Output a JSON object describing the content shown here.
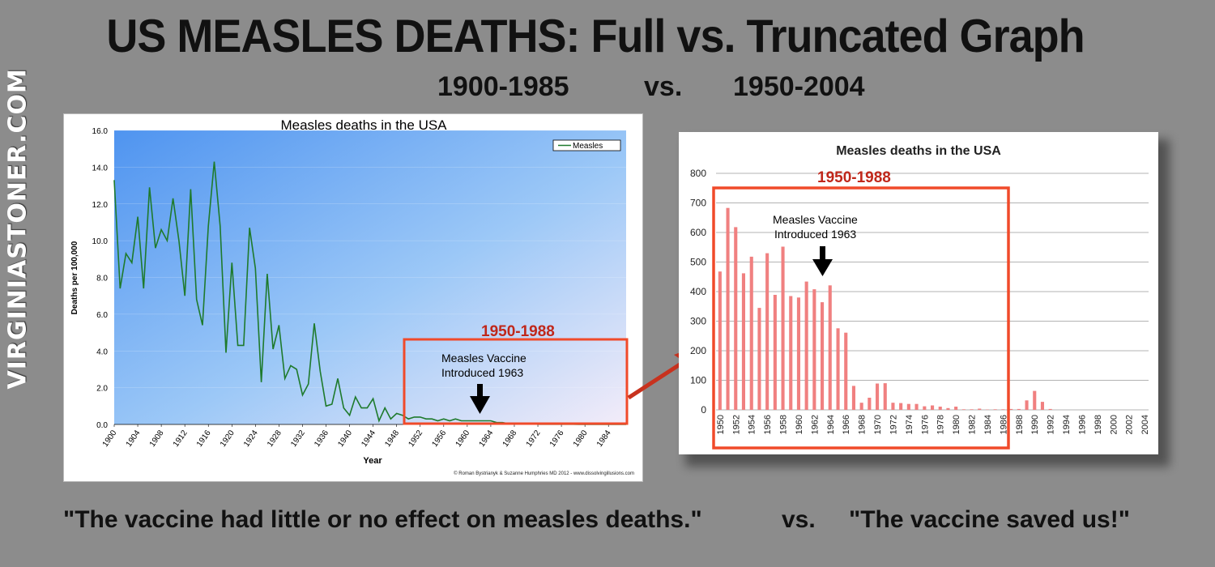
{
  "headline": "US MEASLES DEATHS: Full vs. Truncated Graph",
  "subtitle": {
    "left": "1900-1985",
    "mid": "vs.",
    "right": "1950-2004"
  },
  "side_brand": "VIRGINIASTONER.COM",
  "captions": {
    "left": "\"The vaccine had little or no effect on measles deaths.\"",
    "mid": "vs.",
    "right": "\"The vaccine saved us!\""
  },
  "colors": {
    "line": "#1e7a2c",
    "bar": "#f08080",
    "highlight": "#f04a2a",
    "arrow": "#c8321e"
  },
  "chart_data": [
    {
      "type": "line",
      "title": "Measles deaths in the USA",
      "xlabel": "Year",
      "ylabel": "Deaths per 100,000",
      "ylim": [
        0,
        16
      ],
      "yticks": [
        "0.0",
        "2.0",
        "4.0",
        "6.0",
        "8.0",
        "10.0",
        "12.0",
        "14.0",
        "16.0"
      ],
      "xlim": [
        1900,
        1987
      ],
      "xticks": [
        "1900",
        "1904",
        "1908",
        "1912",
        "1916",
        "1920",
        "1924",
        "1928",
        "1932",
        "1936",
        "1940",
        "1944",
        "1948",
        "1952",
        "1956",
        "1960",
        "1964",
        "1968",
        "1972",
        "1976",
        "1980",
        "1984"
      ],
      "legend": "Measles",
      "legend_position": "top-right",
      "credit": "© Roman Bystrianyk & Suzanne Humphries MD 2012 - www.dissolvingillusions.com",
      "highlight_label": "1950-1988",
      "annotation": [
        "Measles Vaccine",
        "Introduced 1963"
      ],
      "series": [
        {
          "name": "Measles",
          "x": [
            1900,
            1901,
            1902,
            1903,
            1904,
            1905,
            1906,
            1907,
            1908,
            1909,
            1910,
            1911,
            1912,
            1913,
            1914,
            1915,
            1916,
            1917,
            1918,
            1919,
            1920,
            1921,
            1922,
            1923,
            1924,
            1925,
            1926,
            1927,
            1928,
            1929,
            1930,
            1931,
            1932,
            1933,
            1934,
            1935,
            1936,
            1937,
            1938,
            1939,
            1940,
            1941,
            1942,
            1943,
            1944,
            1945,
            1946,
            1947,
            1948,
            1949,
            1950,
            1951,
            1952,
            1953,
            1954,
            1955,
            1956,
            1957,
            1958,
            1959,
            1960,
            1961,
            1962,
            1963,
            1964,
            1965,
            1966,
            1967,
            1968,
            1969,
            1970,
            1971,
            1972,
            1973,
            1974,
            1975,
            1976,
            1977,
            1978,
            1979,
            1980,
            1981,
            1982,
            1983,
            1984,
            1985,
            1986,
            1987
          ],
          "values": [
            13.3,
            7.4,
            9.3,
            8.8,
            11.3,
            7.4,
            12.9,
            9.6,
            10.6,
            10.0,
            12.3,
            10.0,
            7.0,
            12.8,
            6.8,
            5.4,
            10.8,
            14.3,
            10.8,
            3.9,
            8.8,
            4.3,
            4.3,
            10.7,
            8.5,
            2.3,
            8.2,
            4.1,
            5.4,
            2.5,
            3.2,
            3.0,
            1.6,
            2.2,
            5.5,
            2.9,
            1.0,
            1.1,
            2.5,
            0.9,
            0.5,
            1.5,
            0.9,
            0.9,
            1.4,
            0.2,
            0.9,
            0.3,
            0.6,
            0.5,
            0.3,
            0.4,
            0.4,
            0.3,
            0.3,
            0.2,
            0.3,
            0.2,
            0.3,
            0.2,
            0.2,
            0.2,
            0.2,
            0.2,
            0.2,
            0.1,
            0.1,
            0.05,
            0.02,
            0.02,
            0.04,
            0.04,
            0.01,
            0.01,
            0.01,
            0.01,
            0.01,
            0.01,
            0.01,
            0.0,
            0.0,
            0.0,
            0.0,
            0.0,
            0.0,
            0.0,
            0.0,
            0.0
          ]
        }
      ]
    },
    {
      "type": "bar",
      "title": "Measles deaths in the USA",
      "ylim": [
        0,
        800
      ],
      "yticks": [
        "0",
        "100",
        "200",
        "300",
        "400",
        "500",
        "600",
        "700",
        "800"
      ],
      "xticks": [
        "1950",
        "1952",
        "1954",
        "1956",
        "1958",
        "1960",
        "1962",
        "1964",
        "1966",
        "1968",
        "1970",
        "1972",
        "1974",
        "1976",
        "1978",
        "1980",
        "1982",
        "1984",
        "1986",
        "1988",
        "1990",
        "1992",
        "1994",
        "1996",
        "1998",
        "2000",
        "2002",
        "2004"
      ],
      "highlight_label": "1950-1988",
      "annotation": [
        "Measles Vaccine",
        "Introduced 1963"
      ],
      "x": [
        1950,
        1951,
        1952,
        1953,
        1954,
        1955,
        1956,
        1957,
        1958,
        1959,
        1960,
        1961,
        1962,
        1963,
        1964,
        1965,
        1966,
        1967,
        1968,
        1969,
        1970,
        1971,
        1972,
        1973,
        1974,
        1975,
        1976,
        1977,
        1978,
        1979,
        1980,
        1981,
        1982,
        1983,
        1984,
        1985,
        1986,
        1987,
        1988,
        1989,
        1990,
        1991,
        1992,
        1993,
        1994,
        1995,
        1996,
        1997,
        1998,
        1999,
        2000,
        2001,
        2002,
        2003,
        2004
      ],
      "values": [
        468,
        683,
        618,
        462,
        518,
        345,
        530,
        389,
        552,
        385,
        380,
        434,
        408,
        364,
        421,
        276,
        261,
        81,
        24,
        41,
        89,
        90,
        24,
        23,
        20,
        20,
        12,
        15,
        11,
        6,
        11,
        2,
        2,
        4,
        1,
        2,
        2,
        3,
        3,
        32,
        64,
        27,
        3,
        0,
        0,
        0,
        0,
        0,
        0,
        0,
        0,
        0,
        0,
        0,
        0
      ]
    }
  ]
}
